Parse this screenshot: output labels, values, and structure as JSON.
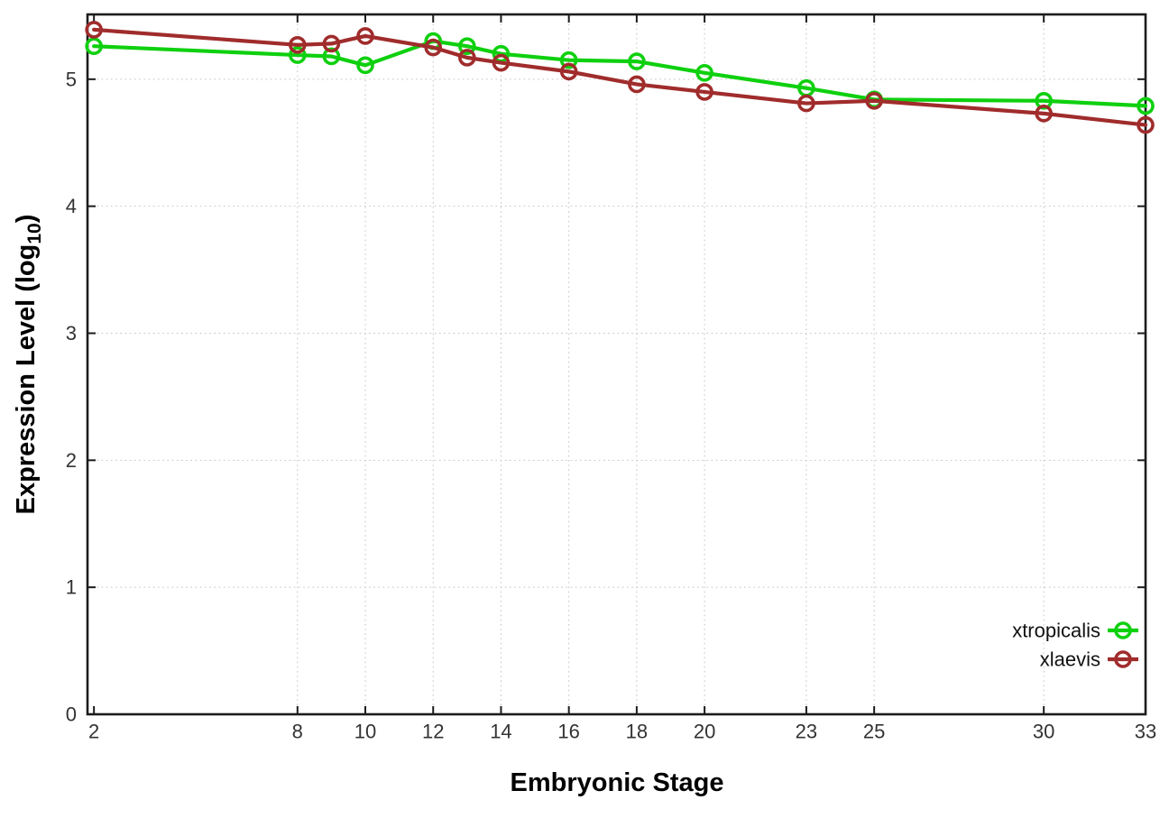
{
  "chart_data": {
    "type": "line",
    "title": "",
    "xlabel": "Embryonic Stage",
    "ylabel": "Expression Level (log10)",
    "ylabel_parts": {
      "pre": "Expression Level (log",
      "sub": "10",
      "post": ")"
    },
    "x": [
      2,
      8,
      9,
      10,
      12,
      13,
      14,
      16,
      18,
      20,
      23,
      25,
      30,
      33
    ],
    "series": [
      {
        "name": "xtropicalis",
        "color": "#0fd00f",
        "values": [
          5.26,
          5.19,
          5.18,
          5.11,
          5.3,
          5.26,
          5.2,
          5.15,
          5.14,
          5.05,
          4.93,
          4.84,
          4.83,
          4.79
        ]
      },
      {
        "name": "xlaevis",
        "color": "#a02c2c",
        "values": [
          5.39,
          5.27,
          5.28,
          5.34,
          5.25,
          5.17,
          5.13,
          5.06,
          4.96,
          4.9,
          4.81,
          4.83,
          4.73,
          4.64
        ]
      }
    ],
    "xticks": [
      2,
      8,
      10,
      12,
      14,
      16,
      18,
      20,
      23,
      25,
      30,
      33
    ],
    "yticks": [
      0,
      1,
      2,
      3,
      4,
      5
    ],
    "xlim": [
      1.81,
      33
    ],
    "ylim": [
      0,
      5.51
    ],
    "grid": true,
    "grid_style": "dotted",
    "legend_position": "inside-bottom-right",
    "background": "#ffffff",
    "marker": "open-circle"
  }
}
